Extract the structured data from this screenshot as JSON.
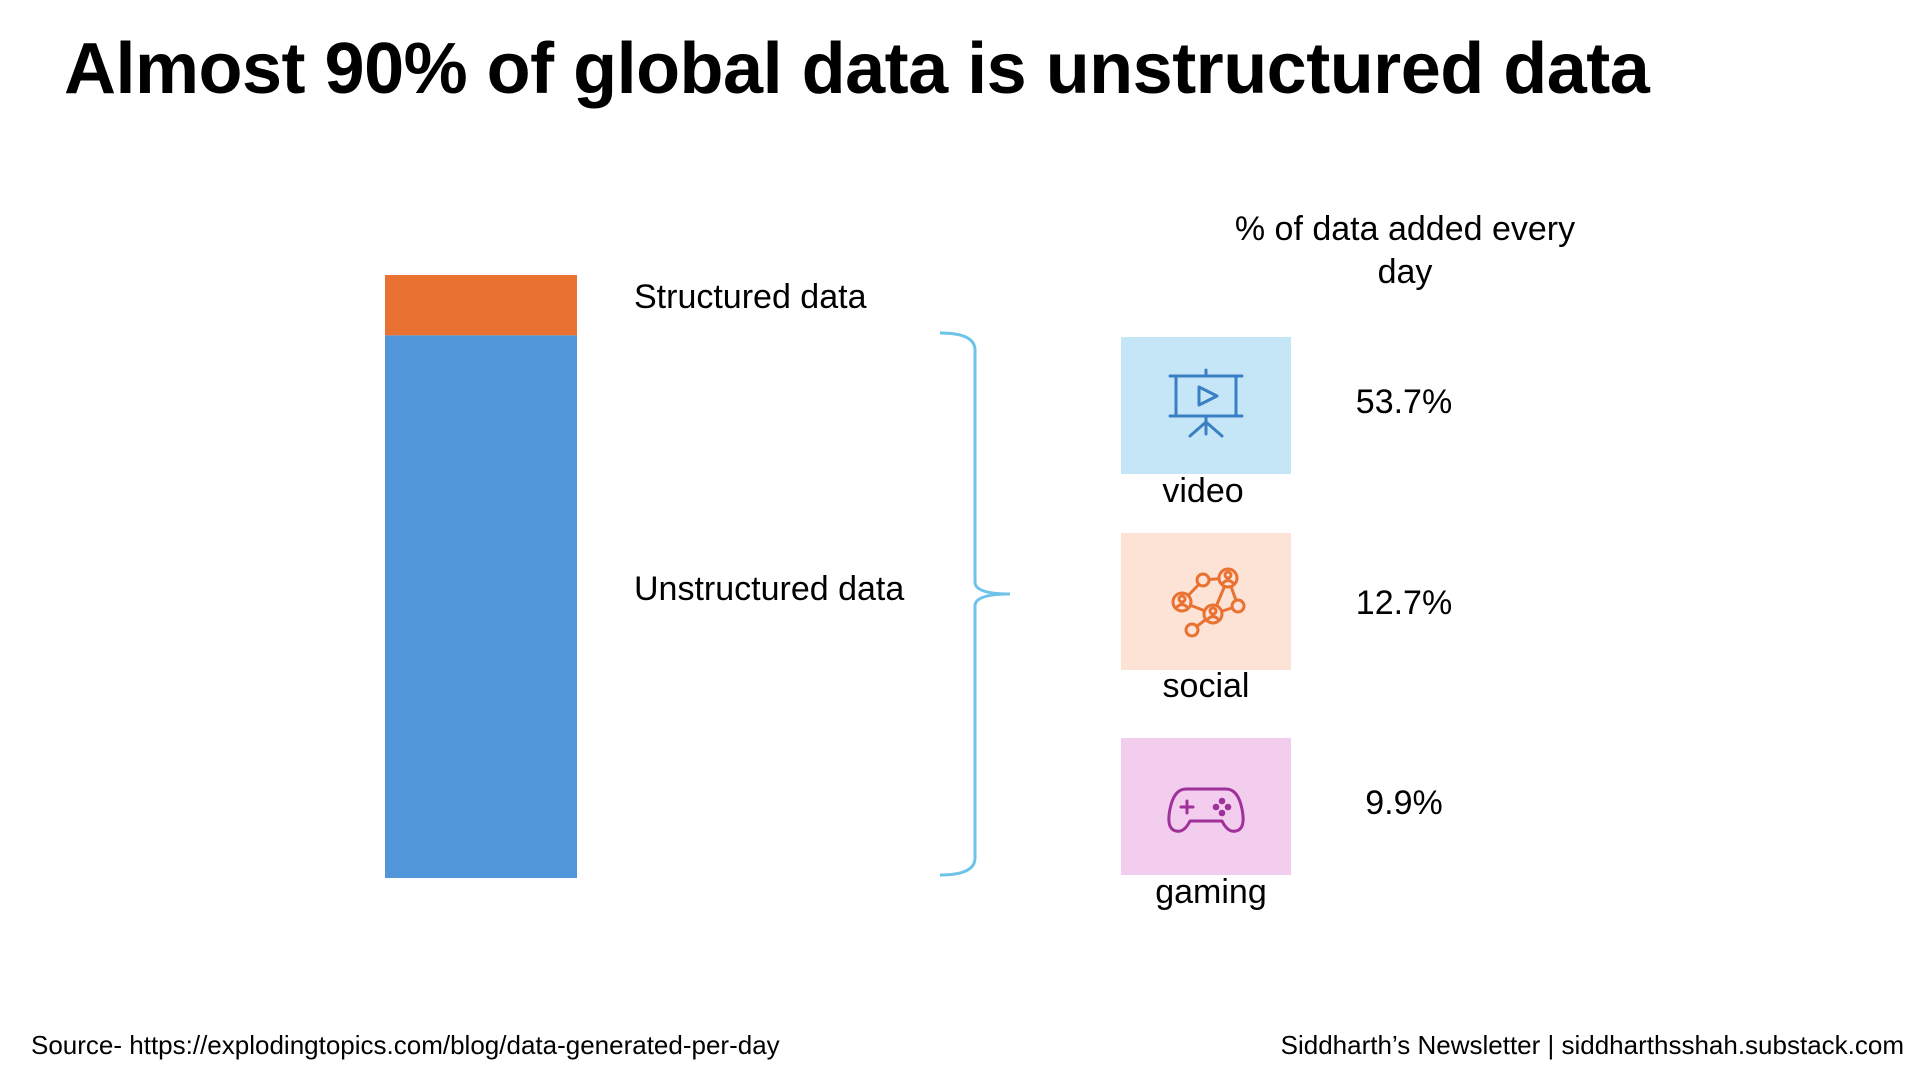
{
  "title": "Almost 90% of global data is unstructured data",
  "chart_data": {
    "type": "bar",
    "stacked": true,
    "categories": [
      ""
    ],
    "series": [
      {
        "name": "Unstructured data",
        "values": [
          90
        ],
        "color": "#5096d8"
      },
      {
        "name": "Structured data",
        "values": [
          10
        ],
        "color": "#e97132"
      }
    ],
    "ylim": [
      0,
      100
    ]
  },
  "breakdown": {
    "header": "% of data added every day",
    "items": [
      {
        "label": "video",
        "value": "53.7%",
        "icon": "video-presentation-icon",
        "bg": "#c5e6f6",
        "color": "#3a7fc4"
      },
      {
        "label": "social",
        "value": "12.7%",
        "icon": "social-network-icon",
        "bg": "#fde3d5",
        "color": "#e97132"
      },
      {
        "label": "gaming",
        "value": "9.9%",
        "icon": "gamepad-icon",
        "bg": "#f2cdee",
        "color": "#a0309a"
      }
    ],
    "brace_color": "#6ec3ea"
  },
  "footer": {
    "source": "Source- https://explodingtopics.com/blog/data-generated-per-day",
    "credit": "Siddharth’s Newsletter | siddharthsshah.substack.com"
  }
}
